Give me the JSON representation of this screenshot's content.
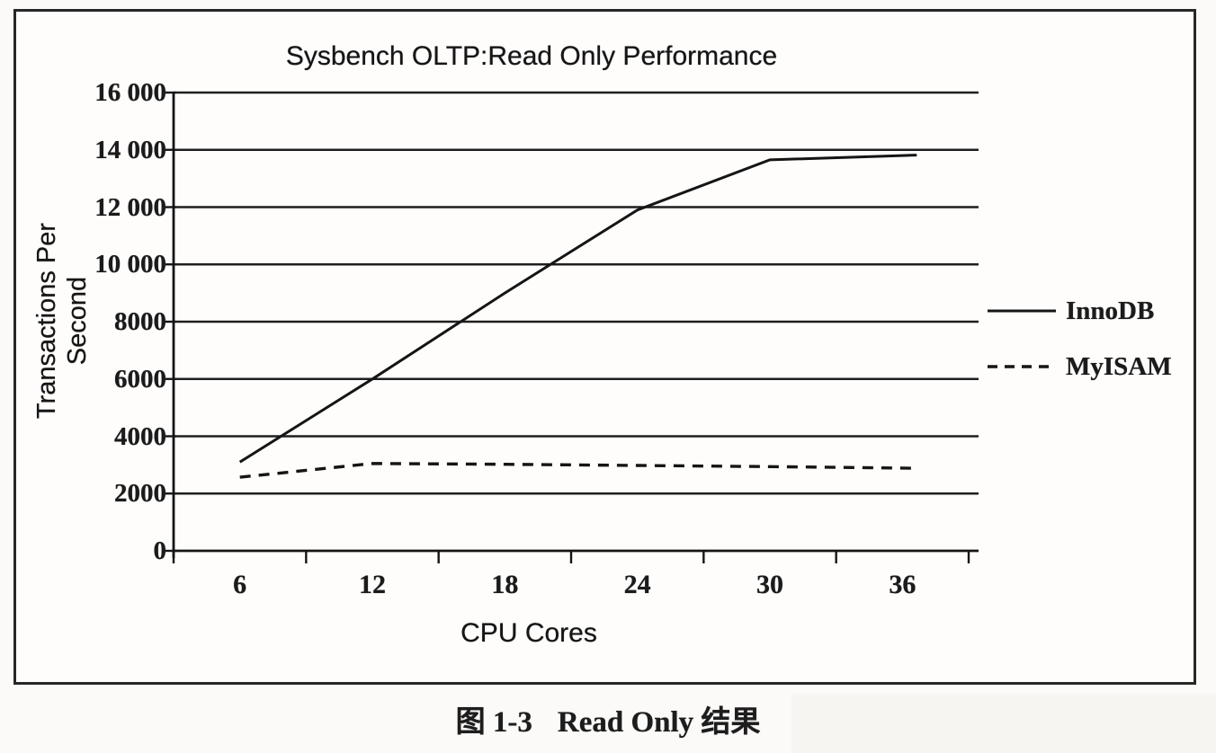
{
  "page": {
    "background": "#fbfaf9",
    "ink": "#1b1b1b"
  },
  "figure_box": {
    "border_color": "#272727"
  },
  "chart_data": {
    "type": "line",
    "title": "Sysbench OLTP:Read Only Performance",
    "xlabel": "CPU Cores",
    "ylabel": "Transactions Per Second",
    "x": [
      6,
      12,
      18,
      24,
      30,
      36
    ],
    "x_tick_labels": [
      "6",
      "12",
      "18",
      "24",
      "30",
      "36"
    ],
    "ylim": [
      0,
      16000
    ],
    "y_tick_step": 2000,
    "y_tick_labels_top_to_bottom": [
      "16 000",
      "14 000",
      "12 000",
      "10 000",
      "8000",
      "6000",
      "4000",
      "2000",
      "0"
    ],
    "grid": "horizontal-only",
    "legend_position": "right-middle",
    "line_color": "#151515",
    "series": [
      {
        "name": "InnoDB",
        "line_style": "solid",
        "values": [
          3100,
          6000,
          9000,
          11900,
          13650,
          13800
        ]
      },
      {
        "name": "MyISAM",
        "line_style": "dashed",
        "values": [
          2570,
          3050,
          3020,
          2980,
          2940,
          2890
        ]
      }
    ]
  },
  "caption": {
    "figure_label": "图 1-3",
    "text": "Read Only 结果"
  }
}
